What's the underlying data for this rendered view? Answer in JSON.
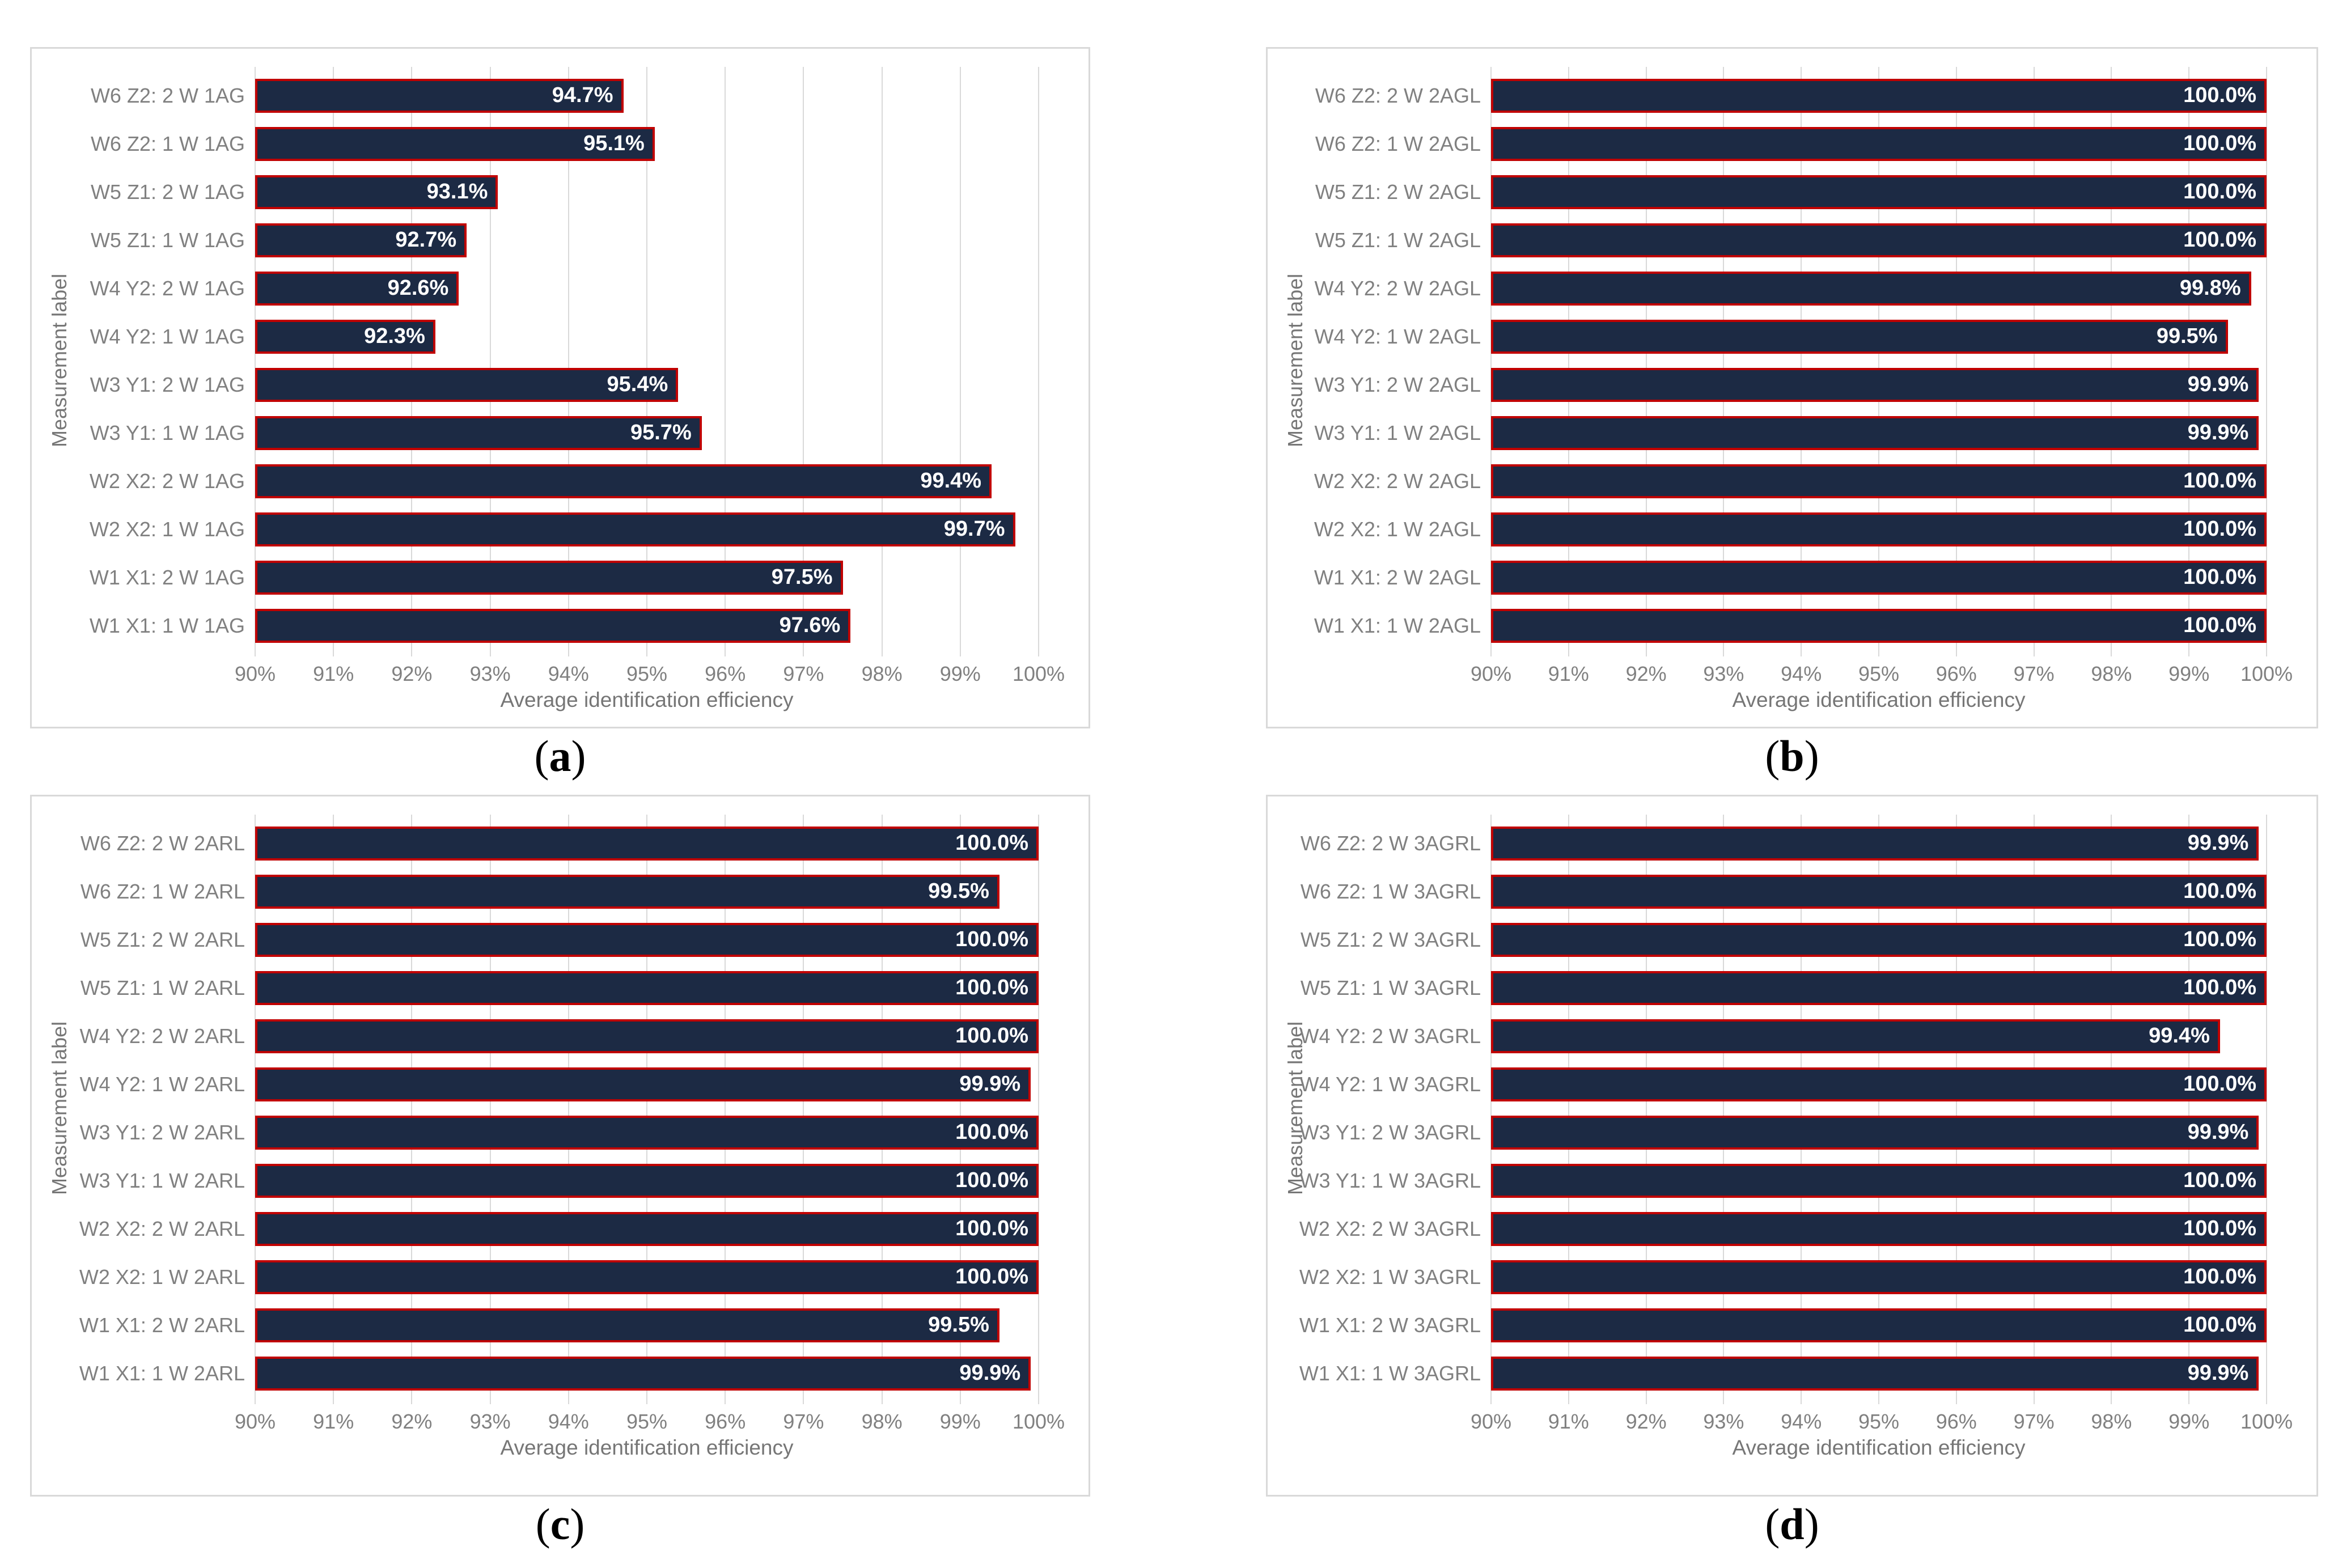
{
  "figure": {
    "xlabel": "Average identification efficiency",
    "ylabel": "Measurement label",
    "x_tick_labels": [
      "90%",
      "91%",
      "92%",
      "93%",
      "94%",
      "95%",
      "96%",
      "97%",
      "98%",
      "99%",
      "100%"
    ],
    "xlim": [
      90,
      100
    ]
  },
  "styles": {
    "bar_fill": "#1c2a44",
    "bar_border": "#c00000",
    "grid_color": "#d9d9d9",
    "panel_border": "#d9d9d9",
    "label_color": "#808080",
    "axis_title_color": "#767676",
    "value_color": "#ffffff",
    "caption_color": "#000000"
  },
  "chart_data": [
    {
      "type": "bar",
      "orientation": "horizontal",
      "caption": "(a)",
      "xlabel": "Average identification efficiency",
      "ylabel": "Measurement label",
      "xlim": [
        90,
        100
      ],
      "x_tick_labels": [
        "90%",
        "91%",
        "92%",
        "93%",
        "94%",
        "95%",
        "96%",
        "97%",
        "98%",
        "99%",
        "100%"
      ],
      "grid": true,
      "categories": [
        "W6 Z2: 2 W 1AG",
        "W6 Z2: 1 W 1AG",
        "W5 Z1: 2 W 1AG",
        "W5 Z1: 1 W 1AG",
        "W4 Y2: 2 W 1AG",
        "W4 Y2: 1 W 1AG",
        "W3 Y1: 2 W 1AG",
        "W3 Y1: 1 W 1AG",
        "W2 X2: 2 W 1AG",
        "W2 X2: 1 W 1AG",
        "W1 X1: 2 W 1AG",
        "W1 X1: 1 W 1AG"
      ],
      "values": [
        94.7,
        95.1,
        93.1,
        92.7,
        92.6,
        92.3,
        95.4,
        95.7,
        99.4,
        99.7,
        97.5,
        97.6
      ],
      "value_labels": [
        "94.7%",
        "95.1%",
        "93.1%",
        "92.7%",
        "92.6%",
        "92.3%",
        "95.4%",
        "95.7%",
        "99.4%",
        "99.7%",
        "97.5%",
        "97.6%"
      ]
    },
    {
      "type": "bar",
      "orientation": "horizontal",
      "caption": "(b)",
      "xlabel": "Average identification efficiency",
      "ylabel": "Measurement label",
      "xlim": [
        90,
        100
      ],
      "x_tick_labels": [
        "90%",
        "91%",
        "92%",
        "93%",
        "94%",
        "95%",
        "96%",
        "97%",
        "98%",
        "99%",
        "100%"
      ],
      "grid": true,
      "categories": [
        "W6 Z2: 2 W 2AGL",
        "W6 Z2: 1 W 2AGL",
        "W5 Z1: 2 W 2AGL",
        "W5 Z1: 1 W 2AGL",
        "W4 Y2: 2 W 2AGL",
        "W4 Y2: 1 W 2AGL",
        "W3 Y1: 2 W 2AGL",
        "W3 Y1: 1 W 2AGL",
        "W2 X2: 2 W 2AGL",
        "W2 X2: 1 W 2AGL",
        "W1 X1: 2 W 2AGL",
        "W1 X1: 1 W 2AGL"
      ],
      "values": [
        100.0,
        100.0,
        100.0,
        100.0,
        99.8,
        99.5,
        99.9,
        99.9,
        100.0,
        100.0,
        100.0,
        100.0
      ],
      "value_labels": [
        "100.0%",
        "100.0%",
        "100.0%",
        "100.0%",
        "99.8%",
        "99.5%",
        "99.9%",
        "99.9%",
        "100.0%",
        "100.0%",
        "100.0%",
        "100.0%"
      ]
    },
    {
      "type": "bar",
      "orientation": "horizontal",
      "caption": "(c)",
      "xlabel": "Average identification efficiency",
      "ylabel": "Measurement label",
      "xlim": [
        90,
        100
      ],
      "x_tick_labels": [
        "90%",
        "91%",
        "92%",
        "93%",
        "94%",
        "95%",
        "96%",
        "97%",
        "98%",
        "99%",
        "100%"
      ],
      "grid": true,
      "categories": [
        "W6 Z2: 2 W 2ARL",
        "W6 Z2: 1 W 2ARL",
        "W5 Z1: 2 W 2ARL",
        "W5 Z1: 1 W 2ARL",
        "W4 Y2: 2 W 2ARL",
        "W4 Y2: 1 W 2ARL",
        "W3 Y1: 2 W 2ARL",
        "W3 Y1: 1 W 2ARL",
        "W2 X2: 2 W 2ARL",
        "W2 X2: 1 W 2ARL",
        "W1 X1: 2 W 2ARL",
        "W1 X1: 1 W 2ARL"
      ],
      "values": [
        100.0,
        99.5,
        100.0,
        100.0,
        100.0,
        99.9,
        100.0,
        100.0,
        100.0,
        100.0,
        99.5,
        99.9
      ],
      "value_labels": [
        "100.0%",
        "99.5%",
        "100.0%",
        "100.0%",
        "100.0%",
        "99.9%",
        "100.0%",
        "100.0%",
        "100.0%",
        "100.0%",
        "99.5%",
        "99.9%"
      ]
    },
    {
      "type": "bar",
      "orientation": "horizontal",
      "caption": "(d)",
      "xlabel": "Average identification efficiency",
      "ylabel": "Measurement label",
      "xlim": [
        90,
        100
      ],
      "x_tick_labels": [
        "90%",
        "91%",
        "92%",
        "93%",
        "94%",
        "95%",
        "96%",
        "97%",
        "98%",
        "99%",
        "100%"
      ],
      "grid": true,
      "categories": [
        "W6 Z2: 2 W 3AGRL",
        "W6 Z2: 1 W 3AGRL",
        "W5 Z1: 2 W 3AGRL",
        "W5 Z1: 1 W 3AGRL",
        "W4 Y2: 2 W 3AGRL",
        "W4 Y2: 1 W 3AGRL",
        "W3 Y1: 2 W 3AGRL",
        "W3 Y1: 1 W 3AGRL",
        "W2 X2: 2 W 3AGRL",
        "W2 X2: 1 W 3AGRL",
        "W1 X1: 2 W 3AGRL",
        "W1 X1: 1 W 3AGRL"
      ],
      "values": [
        99.9,
        100.0,
        100.0,
        100.0,
        99.4,
        100.0,
        99.9,
        100.0,
        100.0,
        100.0,
        100.0,
        99.9
      ],
      "value_labels": [
        "99.9%",
        "100.0%",
        "100.0%",
        "100.0%",
        "99.4%",
        "100.0%",
        "99.9%",
        "100.0%",
        "100.0%",
        "100.0%",
        "100.0%",
        "99.9%"
      ]
    }
  ]
}
